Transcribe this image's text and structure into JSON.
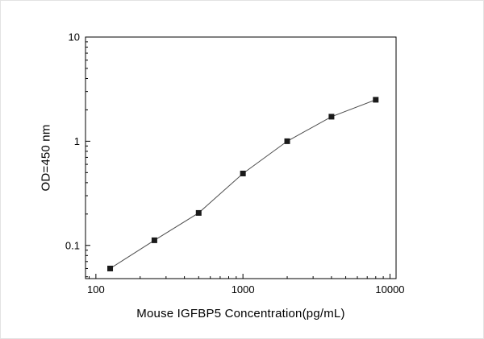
{
  "chart_data": {
    "type": "line",
    "title": "",
    "xlabel": "Mouse IGFBP5 Concentration(pg/mL)",
    "ylabel": "OD=450 nm",
    "xscale": "log",
    "yscale": "log",
    "xlim": [
      85,
      11000
    ],
    "ylim": [
      0.048,
      10
    ],
    "x": [
      125,
      250,
      500,
      1000,
      2000,
      4000,
      8000
    ],
    "y": [
      0.06,
      0.112,
      0.205,
      0.49,
      1.0,
      1.72,
      2.5
    ],
    "x_ticks": [
      {
        "value": 100,
        "label": "100"
      },
      {
        "value": 1000,
        "label": "1000"
      },
      {
        "value": 10000,
        "label": "10000"
      }
    ],
    "y_ticks": [
      {
        "value": 0.1,
        "label": "0.1"
      },
      {
        "value": 1,
        "label": "1"
      },
      {
        "value": 10,
        "label": "10"
      }
    ],
    "grid": false,
    "legend": null,
    "marker": "square",
    "marker_color": "#1a1a1a",
    "line_color": "#4d4d4d",
    "axis_color": "#000000",
    "background_color": "#ffffff"
  }
}
